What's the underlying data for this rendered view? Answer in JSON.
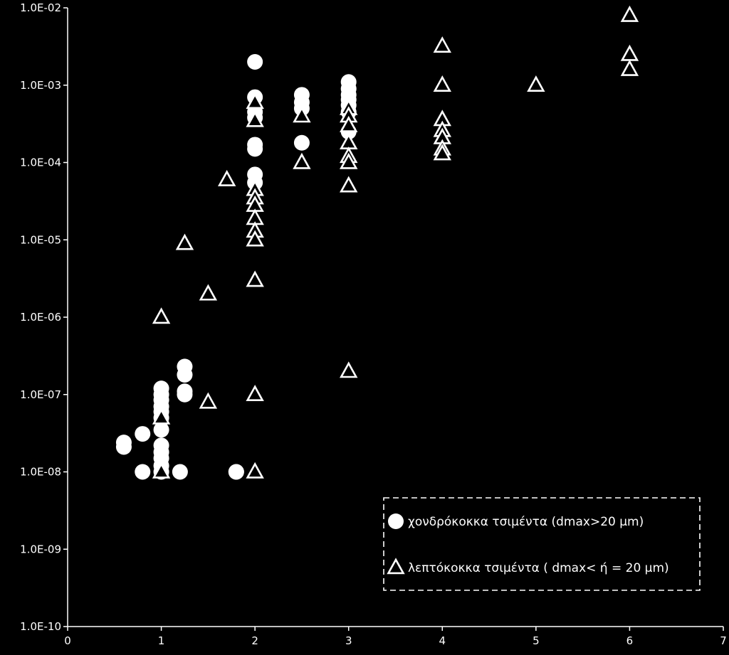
{
  "chart_data": {
    "type": "scatter",
    "title": "",
    "xlabel": "",
    "ylabel": "",
    "xlim": [
      0,
      7
    ],
    "ylim": [
      1e-10,
      0.01
    ],
    "yscale": "log",
    "grid": false,
    "legend_position": "bottom-right",
    "background": "#000000",
    "foreground": "#ffffff",
    "x_ticks": [
      "0",
      "1",
      "2",
      "3",
      "4",
      "5",
      "6",
      "7"
    ],
    "y_ticks": [
      "1.0E-10",
      "1.0E-09",
      "1.0E-08",
      "1.0E-07",
      "1.0E-06",
      "1.0E-05",
      "1.0E-04",
      "1.0E-03",
      "1.0E-02"
    ],
    "series": [
      {
        "name": "χονδρόκοκκα τσιμέντα (dmax>20 μm)",
        "marker": "circle",
        "color": "#ffffff",
        "points": [
          [
            0.6,
            2.4e-08
          ],
          [
            0.6,
            2.1e-08
          ],
          [
            0.8,
            3.1e-08
          ],
          [
            0.8,
            1e-08
          ],
          [
            1.0,
            1.2e-07
          ],
          [
            1.0,
            1e-07
          ],
          [
            1.0,
            8.5e-08
          ],
          [
            1.0,
            7e-08
          ],
          [
            1.0,
            6e-08
          ],
          [
            1.0,
            5e-08
          ],
          [
            1.0,
            3.5e-08
          ],
          [
            1.0,
            2.2e-08
          ],
          [
            1.0,
            1.8e-08
          ],
          [
            1.0,
            1.5e-08
          ],
          [
            1.0,
            1.2e-08
          ],
          [
            1.0,
            1e-08
          ],
          [
            1.2,
            1e-08
          ],
          [
            1.25,
            2.3e-07
          ],
          [
            1.25,
            1.8e-07
          ],
          [
            1.25,
            1.1e-07
          ],
          [
            1.25,
            1e-07
          ],
          [
            1.8,
            1e-08
          ],
          [
            1.8,
            1e-08
          ],
          [
            2.0,
            0.002
          ],
          [
            2.0,
            0.0007
          ],
          [
            2.0,
            0.00045
          ],
          [
            2.0,
            0.00038
          ],
          [
            2.0,
            0.00017
          ],
          [
            2.0,
            0.00015
          ],
          [
            2.0,
            7e-05
          ],
          [
            2.0,
            5.5e-05
          ],
          [
            2.5,
            0.00075
          ],
          [
            2.5,
            0.0006
          ],
          [
            2.5,
            0.0005
          ],
          [
            2.5,
            0.00018
          ],
          [
            3.0,
            0.0011
          ],
          [
            3.0,
            0.0009
          ],
          [
            3.0,
            0.00075
          ],
          [
            3.0,
            0.00065
          ],
          [
            3.0,
            0.00055
          ],
          [
            3.0,
            0.00045
          ],
          [
            3.0,
            0.00025
          ]
        ]
      },
      {
        "name": "λεπτόκοκκα τσιμέντα ( dmax< ή = 20 μm)",
        "marker": "triangle",
        "color": "#ffffff",
        "points": [
          [
            1.0,
            1e-06
          ],
          [
            1.0,
            1e-08
          ],
          [
            1.0,
            5e-08
          ],
          [
            1.25,
            9e-06
          ],
          [
            1.5,
            2e-06
          ],
          [
            1.5,
            8e-08
          ],
          [
            1.7,
            6e-05
          ],
          [
            2.0,
            0.0006
          ],
          [
            2.0,
            0.00035
          ],
          [
            2.0,
            4.5e-05
          ],
          [
            2.0,
            3.5e-05
          ],
          [
            2.0,
            2.8e-05
          ],
          [
            2.0,
            1.9e-05
          ],
          [
            2.0,
            1.3e-05
          ],
          [
            2.0,
            1e-05
          ],
          [
            2.0,
            3e-06
          ],
          [
            2.0,
            1e-07
          ],
          [
            2.0,
            1e-08
          ],
          [
            2.5,
            0.0004
          ],
          [
            2.5,
            0.0001
          ],
          [
            3.0,
            0.0005
          ],
          [
            3.0,
            0.0004
          ],
          [
            3.0,
            0.0003
          ],
          [
            3.0,
            0.00018
          ],
          [
            3.0,
            0.00012
          ],
          [
            3.0,
            0.0001
          ],
          [
            3.0,
            5e-05
          ],
          [
            3.0,
            2e-07
          ],
          [
            4.0,
            0.0032
          ],
          [
            4.0,
            0.001
          ],
          [
            4.0,
            0.00036
          ],
          [
            4.0,
            0.00026
          ],
          [
            4.0,
            0.00021
          ],
          [
            4.0,
            0.00015
          ],
          [
            4.0,
            0.00013
          ],
          [
            5.0,
            0.001
          ],
          [
            6.0,
            0.008
          ],
          [
            6.0,
            0.0025
          ],
          [
            6.0,
            0.0016
          ]
        ]
      }
    ]
  }
}
